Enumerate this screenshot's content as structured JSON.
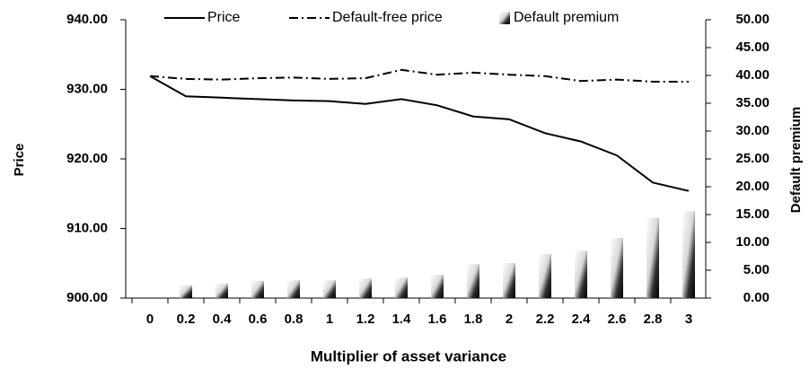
{
  "chart_data": {
    "type": "combo",
    "x_label": "Multiplier of asset variance",
    "y_label": "Price",
    "y2_label": "Default premium",
    "categories": [
      "0",
      "0.2",
      "0.4",
      "0.6",
      "0.8",
      "1",
      "1.2",
      "1.4",
      "1.6",
      "1.8",
      "2",
      "2.2",
      "2.4",
      "2.6",
      "2.8",
      "3"
    ],
    "series": [
      {
        "name": "Price",
        "type": "line",
        "dash": "solid",
        "color": "#000000",
        "axis": "y",
        "values": [
          931.9,
          929.0,
          928.8,
          928.6,
          928.4,
          928.3,
          927.9,
          928.6,
          927.7,
          926.1,
          925.7,
          923.7,
          922.5,
          920.5,
          916.6,
          915.4
        ]
      },
      {
        "name": "Default-free price",
        "type": "line",
        "dash": "dashdot",
        "color": "#000000",
        "axis": "y",
        "values": [
          931.9,
          931.5,
          931.4,
          931.6,
          931.7,
          931.5,
          931.6,
          932.8,
          932.1,
          932.4,
          932.1,
          931.9,
          931.2,
          931.4,
          931.1,
          931.1
        ]
      },
      {
        "name": "Default premium",
        "type": "bar",
        "color": "#303030",
        "axis": "y2",
        "values": [
          0,
          2.3,
          2.6,
          3.1,
          3.2,
          3.2,
          3.5,
          3.7,
          4.2,
          6.1,
          6.3,
          7.9,
          8.5,
          10.8,
          14.4,
          15.6
        ]
      }
    ],
    "ylim": [
      900,
      940
    ],
    "yticks": [
      {
        "value": 900,
        "label": "900.00"
      },
      {
        "value": 910,
        "label": "910.00"
      },
      {
        "value": 920,
        "label": "920.00"
      },
      {
        "value": 930,
        "label": "930.00"
      },
      {
        "value": 940,
        "label": "940.00"
      }
    ],
    "y2lim": [
      0,
      50
    ],
    "y2ticks": [
      {
        "value": 0,
        "label": "0.00"
      },
      {
        "value": 5,
        "label": "5.00"
      },
      {
        "value": 10,
        "label": "10.00"
      },
      {
        "value": 15,
        "label": "15.00"
      },
      {
        "value": 20,
        "label": "20.00"
      },
      {
        "value": 25,
        "label": "25.00"
      },
      {
        "value": 30,
        "label": "30.00"
      },
      {
        "value": 35,
        "label": "35.00"
      },
      {
        "value": 40,
        "label": "40.00"
      },
      {
        "value": 45,
        "label": "45.00"
      },
      {
        "value": 50,
        "label": "50.00"
      }
    ],
    "grid": false,
    "legend": "top"
  }
}
